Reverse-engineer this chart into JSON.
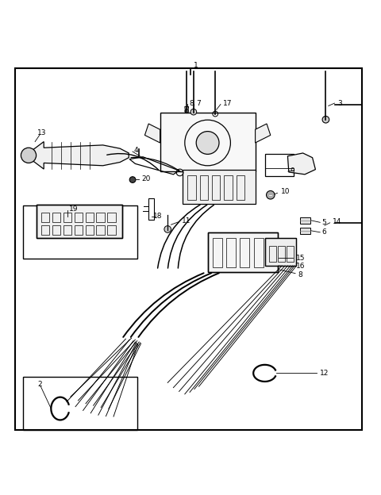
{
  "bg_color": "#ffffff",
  "line_color": "#000000",
  "fig_width": 4.8,
  "fig_height": 6.24,
  "dpi": 100
}
